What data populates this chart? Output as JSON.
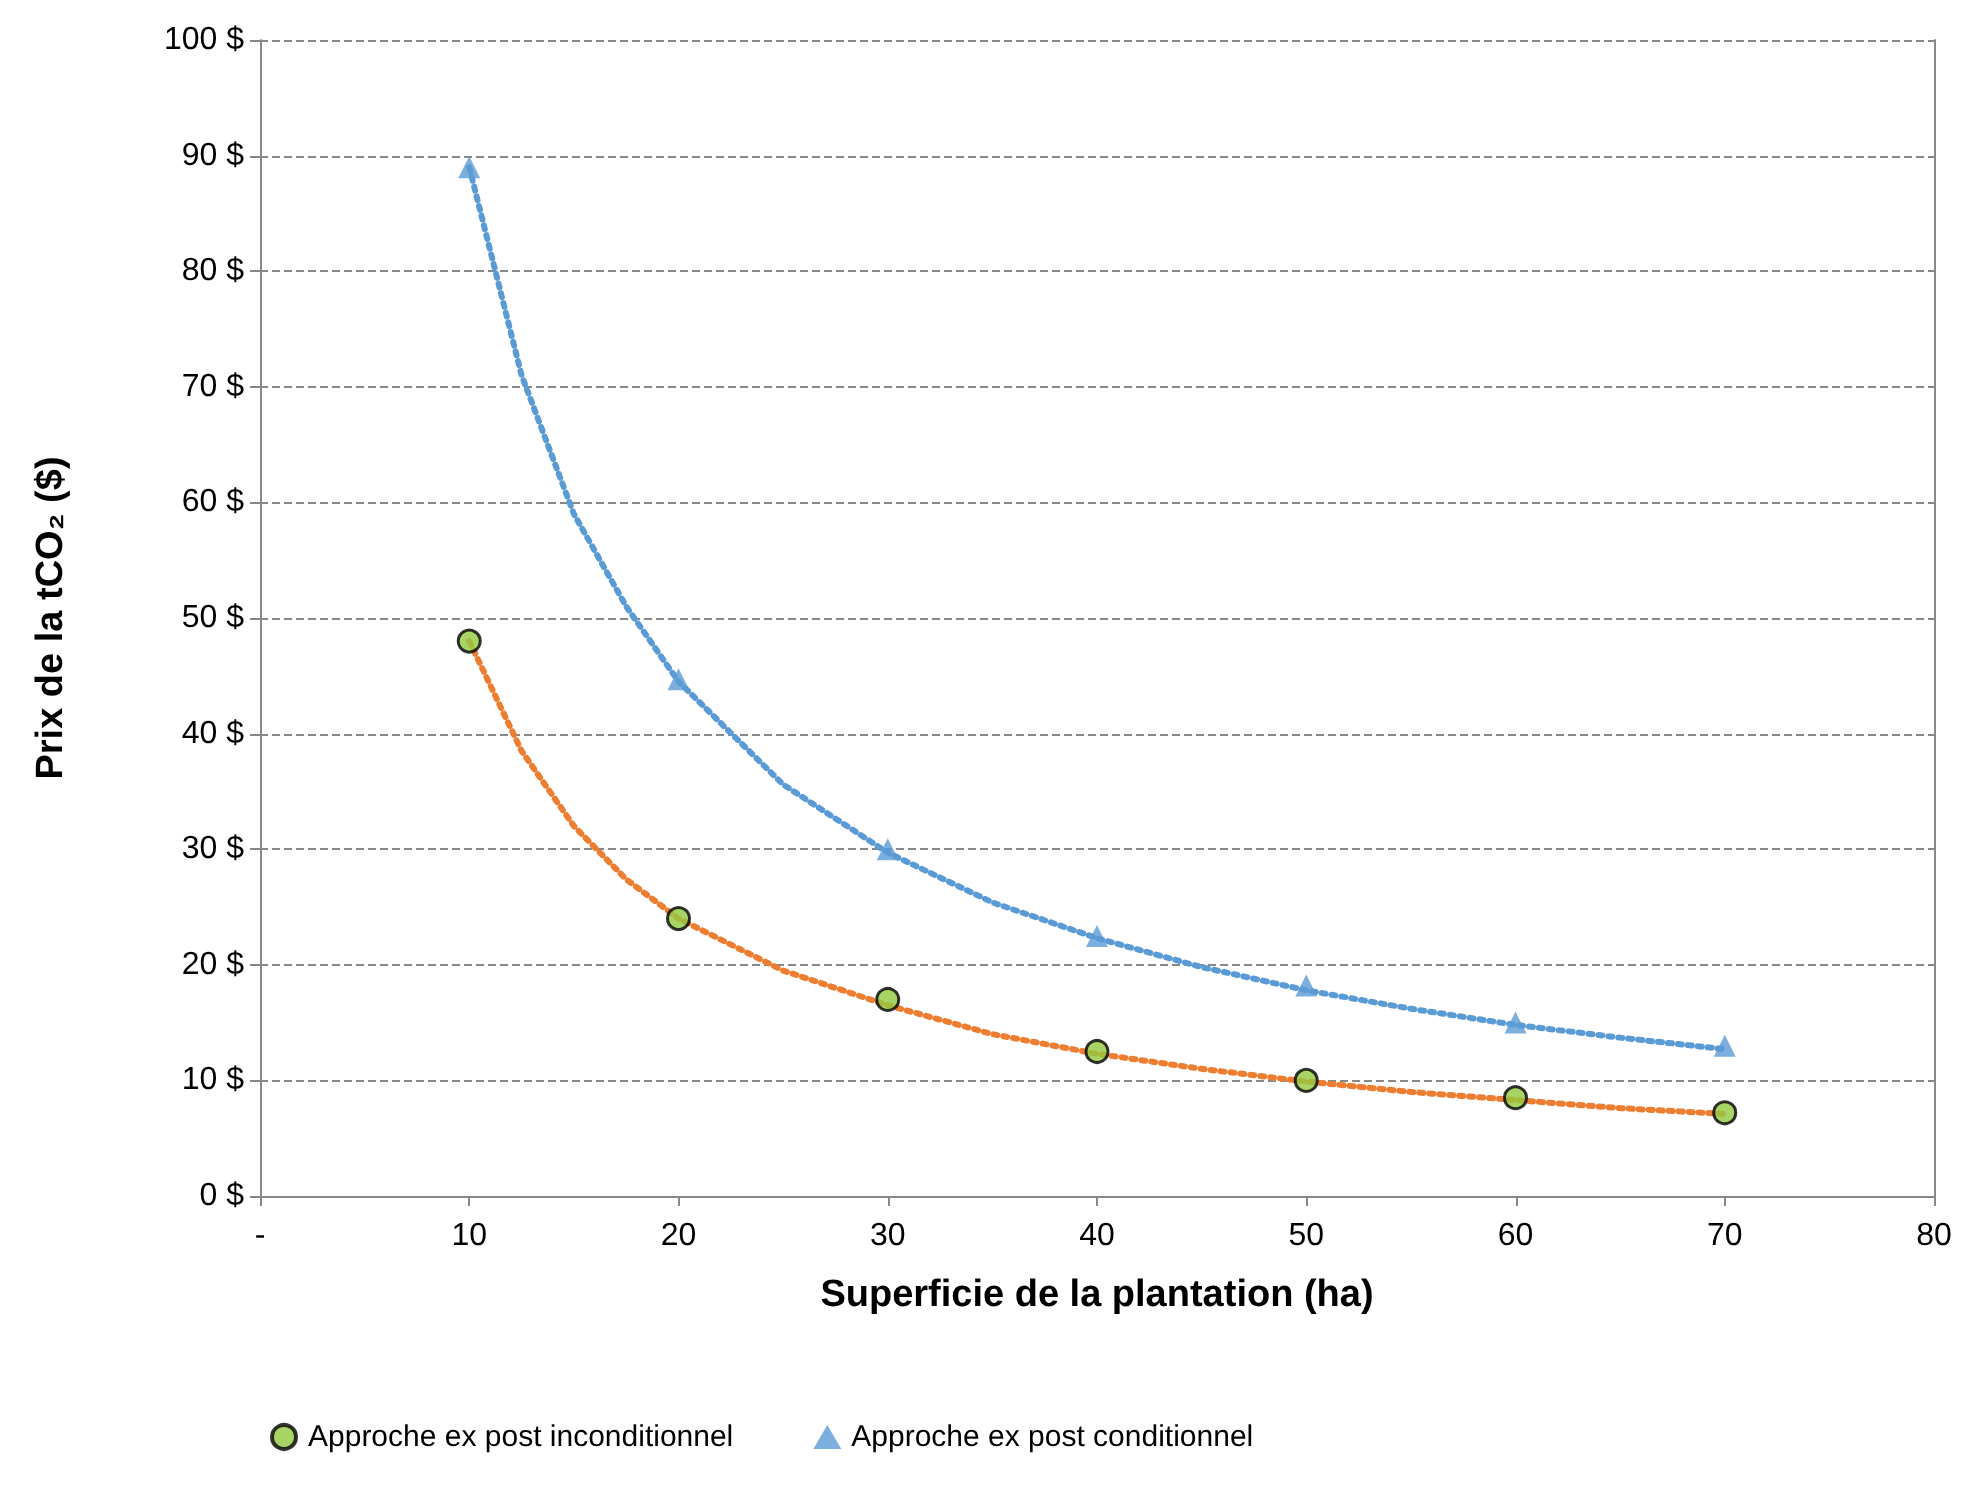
{
  "chart_data": {
    "type": "line",
    "xlabel": "Superficie de la plantation (ha)",
    "ylabel": "Prix de la tCO₂ ($)",
    "x": [
      10,
      20,
      30,
      40,
      50,
      60,
      70
    ],
    "series": [
      {
        "name": "Approche ex post inconditionnel",
        "type": "scatter",
        "marker": "circle",
        "color": "#92c83e",
        "values": [
          48,
          24,
          17,
          12.5,
          10,
          8.5,
          7.2
        ]
      },
      {
        "name": "Approche ex post conditionnel",
        "type": "scatter",
        "marker": "triangle",
        "color": "#5b9bd5",
        "values": [
          89,
          44.7,
          30,
          22.5,
          18.2,
          15,
          13
        ]
      },
      {
        "line_style": "dotted",
        "color": "#ed7d31",
        "x": [
          10,
          12.5,
          15,
          17.5,
          20,
          25,
          30,
          35,
          40,
          45,
          50,
          55,
          60,
          65,
          70
        ],
        "values": [
          48,
          38.5,
          32,
          27.4,
          24,
          19.5,
          16.5,
          14,
          12.3,
          11,
          9.9,
          9,
          8.3,
          7.6,
          7.1
        ]
      },
      {
        "line_style": "dotted",
        "color": "#5b9bd5",
        "x": [
          10,
          12.5,
          15,
          17.5,
          20,
          25,
          30,
          35,
          40,
          45,
          50,
          55,
          60,
          65,
          70
        ],
        "values": [
          89,
          71,
          59,
          51,
          44.5,
          35.6,
          29.7,
          25.4,
          22.3,
          19.8,
          17.8,
          16.2,
          14.8,
          13.7,
          12.7
        ]
      }
    ],
    "xlim": [
      0,
      80
    ],
    "xticks": [
      {
        "value": 0,
        "label": "-"
      },
      10,
      20,
      30,
      40,
      50,
      60,
      70,
      80
    ],
    "ylim": [
      0,
      100
    ],
    "yticks": [
      {
        "value": 0,
        "label": "0 $"
      },
      {
        "value": 10,
        "label": "10 $"
      },
      {
        "value": 20,
        "label": "20 $"
      },
      {
        "value": 30,
        "label": "30 $"
      },
      {
        "value": 40,
        "label": "40 $"
      },
      {
        "value": 50,
        "label": "50 $"
      },
      {
        "value": 60,
        "label": "60 $"
      },
      {
        "value": 70,
        "label": "70 $"
      },
      {
        "value": 80,
        "label": "80 $"
      },
      {
        "value": 90,
        "label": "90 $"
      },
      {
        "value": 100,
        "label": "100 $"
      }
    ],
    "grid": "y",
    "legend": "bottom left"
  }
}
